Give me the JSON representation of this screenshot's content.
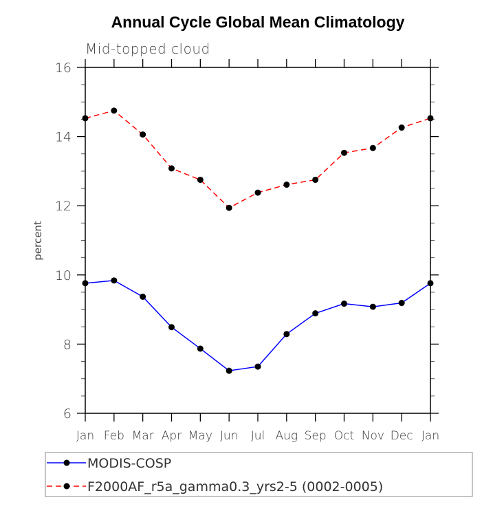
{
  "chart_data": {
    "type": "line",
    "title": "Annual Cycle Global Mean Climatology",
    "subtitle": "Mid-topped cloud",
    "xlabel": "",
    "ylabel": "percent",
    "categories": [
      "Jan",
      "Feb",
      "Mar",
      "Apr",
      "May",
      "Jun",
      "Jul",
      "Aug",
      "Sep",
      "Oct",
      "Nov",
      "Dec",
      "Jan"
    ],
    "ylim": [
      6,
      16
    ],
    "yticks": [
      6,
      8,
      10,
      12,
      14,
      16
    ],
    "yminor_step": 0.5,
    "grid": false,
    "legend_position": "bottom",
    "series": [
      {
        "name": "MODIS-COSP",
        "color": "#0000ff",
        "line_style": "solid",
        "marker": "filled-circle",
        "values": [
          9.76,
          9.84,
          9.37,
          8.49,
          7.87,
          7.23,
          7.35,
          8.29,
          8.89,
          9.17,
          9.08,
          9.19,
          9.76
        ]
      },
      {
        "name": "F2000AF_r5a_gamma0.3_yrs2-5 (0002-0005)",
        "color": "#ff0000",
        "line_style": "dashed",
        "marker": "filled-circle",
        "values": [
          14.53,
          14.75,
          14.06,
          13.08,
          12.75,
          11.94,
          12.38,
          12.61,
          12.75,
          13.53,
          13.67,
          14.26,
          14.53
        ]
      }
    ]
  }
}
